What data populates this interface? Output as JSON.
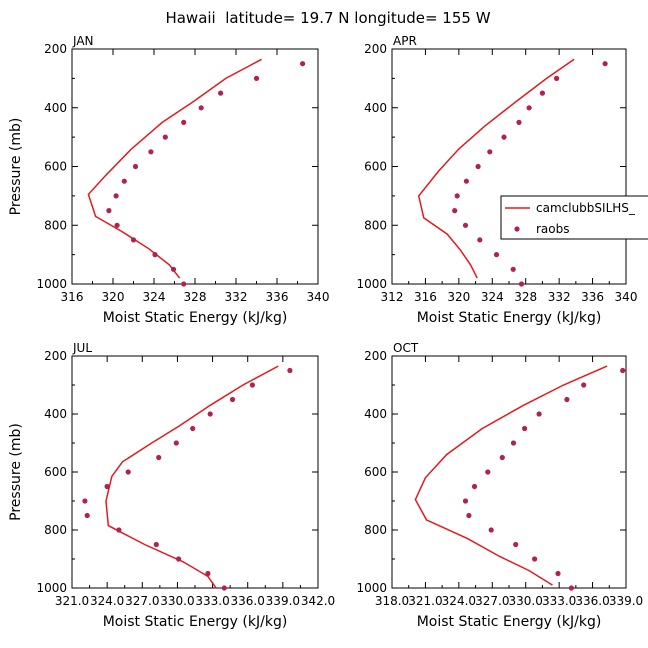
{
  "figure_title": "Hawaii  latitude= 19.7 N longitude= 155 W",
  "legend": {
    "model_label": "camclubbSILHS_",
    "obs_label": "raobs",
    "model_color": "#e41a1c",
    "obs_color": "#b2224e"
  },
  "chart_data": [
    {
      "type": "line",
      "panel": "JAN",
      "title": "JAN",
      "xlabel": "Moist Static Energy (kJ/kg)",
      "ylabel": "Pressure (mb)",
      "xlim": [
        316,
        340
      ],
      "ylim": [
        1000,
        200
      ],
      "x_tick_labels": [
        "316",
        "320",
        "324",
        "328",
        "332",
        "336",
        "340"
      ],
      "y_tick_labels": [
        "200",
        "400",
        "600",
        "800",
        "1000"
      ],
      "series": [
        {
          "name": "camclubbSILHS_",
          "style": "line",
          "points": [
            [
              334.5,
              235
            ],
            [
              331,
              300
            ],
            [
              327.8,
              380
            ],
            [
              324.8,
              450
            ],
            [
              321.8,
              540
            ],
            [
              319.3,
              630
            ],
            [
              317.6,
              695
            ],
            [
              318.3,
              770
            ],
            [
              320.8,
              820
            ],
            [
              323.5,
              880
            ],
            [
              325.5,
              935
            ],
            [
              326.5,
              980
            ]
          ]
        },
        {
          "name": "raobs",
          "style": "markers",
          "points": [
            [
              338.5,
              250
            ],
            [
              334,
              300
            ],
            [
              330.5,
              350
            ],
            [
              328.6,
              400
            ],
            [
              326.9,
              450
            ],
            [
              325.1,
              500
            ],
            [
              323.7,
              550
            ],
            [
              322.2,
              600
            ],
            [
              321.1,
              650
            ],
            [
              320.3,
              700
            ],
            [
              319.6,
              750
            ],
            [
              320.4,
              800
            ],
            [
              322,
              850
            ],
            [
              324.1,
              900
            ],
            [
              325.9,
              950
            ],
            [
              326.9,
              1000
            ]
          ]
        }
      ]
    },
    {
      "type": "line",
      "panel": "APR",
      "title": "APR",
      "xlabel": "Moist Static Energy (kJ/kg)",
      "ylabel": "",
      "xlim": [
        312,
        340
      ],
      "ylim": [
        1000,
        200
      ],
      "x_tick_labels": [
        "312",
        "316",
        "320",
        "324",
        "328",
        "332",
        "336",
        "340"
      ],
      "y_tick_labels": [
        "200",
        "400",
        "600",
        "800",
        "1000"
      ],
      "series": [
        {
          "name": "camclubbSILHS_",
          "style": "line",
          "points": [
            [
              333.8,
              235
            ],
            [
              330.5,
              300
            ],
            [
              326.8,
              380
            ],
            [
              323.2,
              460
            ],
            [
              320,
              540
            ],
            [
              317.6,
              615
            ],
            [
              315.2,
              700
            ],
            [
              315.8,
              775
            ],
            [
              318.6,
              830
            ],
            [
              320.2,
              885
            ],
            [
              321.4,
              935
            ],
            [
              322.2,
              980
            ]
          ]
        },
        {
          "name": "raobs",
          "style": "markers",
          "points": [
            [
              337.5,
              250
            ],
            [
              331.7,
              300
            ],
            [
              330,
              350
            ],
            [
              328.4,
              400
            ],
            [
              327.2,
              450
            ],
            [
              325.4,
              500
            ],
            [
              323.7,
              550
            ],
            [
              322.3,
              600
            ],
            [
              320.9,
              650
            ],
            [
              319.8,
              700
            ],
            [
              319.5,
              750
            ],
            [
              320.8,
              800
            ],
            [
              322.5,
              850
            ],
            [
              324.5,
              900
            ],
            [
              326.5,
              950
            ],
            [
              327.5,
              1000
            ]
          ]
        }
      ]
    },
    {
      "type": "line",
      "panel": "JUL",
      "title": "JUL",
      "xlabel": "Moist Static Energy (kJ/kg)",
      "ylabel": "Pressure (mb)",
      "xlim": [
        321.0,
        342.0
      ],
      "ylim": [
        1000,
        200
      ],
      "x_tick_labels": [
        "321.0",
        "324.0",
        "327.0",
        "330.0",
        "333.0",
        "336.0",
        "339.0",
        "342.0"
      ],
      "y_tick_labels": [
        "200",
        "400",
        "600",
        "800",
        "1000"
      ],
      "series": [
        {
          "name": "camclubbSILHS_",
          "style": "line",
          "points": [
            [
              338.6,
              235
            ],
            [
              335.6,
              300
            ],
            [
              332.8,
              370
            ],
            [
              330.2,
              440
            ],
            [
              327.8,
              500
            ],
            [
              325.3,
              565
            ],
            [
              324.4,
              615
            ],
            [
              323.9,
              700
            ],
            [
              324.1,
              785
            ],
            [
              327.2,
              850
            ],
            [
              330.5,
              910
            ],
            [
              332.6,
              960
            ],
            [
              333.3,
              1000
            ]
          ]
        },
        {
          "name": "raobs",
          "style": "markers",
          "points": [
            [
              339.6,
              250
            ],
            [
              336.4,
              300
            ],
            [
              334.7,
              350
            ],
            [
              332.8,
              400
            ],
            [
              331.3,
              450
            ],
            [
              329.9,
              500
            ],
            [
              328.4,
              550
            ],
            [
              325.8,
              600
            ],
            [
              324,
              650
            ],
            [
              322.1,
              700
            ],
            [
              322.3,
              750
            ],
            [
              325,
              800
            ],
            [
              328.2,
              850
            ],
            [
              330.1,
              900
            ],
            [
              332.6,
              950
            ],
            [
              334,
              1000
            ]
          ]
        }
      ]
    },
    {
      "type": "line",
      "panel": "OCT",
      "title": "OCT",
      "xlabel": "Moist Static Energy (kJ/kg)",
      "ylabel": "",
      "xlim": [
        318.0,
        339.0
      ],
      "ylim": [
        1000,
        200
      ],
      "x_tick_labels": [
        "318.0",
        "321.0",
        "324.0",
        "327.0",
        "330.0",
        "333.0",
        "336.0",
        "339.0"
      ],
      "y_tick_labels": [
        "200",
        "400",
        "600",
        "800",
        "1000"
      ],
      "series": [
        {
          "name": "camclubbSILHS_",
          "style": "line",
          "points": [
            [
              337.3,
              235
            ],
            [
              333.4,
              300
            ],
            [
              329.8,
              370
            ],
            [
              326.1,
              450
            ],
            [
              322.9,
              540
            ],
            [
              321,
              620
            ],
            [
              320.1,
              695
            ],
            [
              321.1,
              765
            ],
            [
              324.8,
              830
            ],
            [
              327.6,
              890
            ],
            [
              330.3,
              940
            ],
            [
              332.4,
              990
            ]
          ]
        },
        {
          "name": "raobs",
          "style": "markers",
          "points": [
            [
              338.7,
              250
            ],
            [
              335.2,
              300
            ],
            [
              333.7,
              350
            ],
            [
              331.2,
              400
            ],
            [
              329.9,
              450
            ],
            [
              328.9,
              500
            ],
            [
              327.9,
              550
            ],
            [
              326.6,
              600
            ],
            [
              325.4,
              650
            ],
            [
              324.6,
              700
            ],
            [
              324.9,
              750
            ],
            [
              326.9,
              800
            ],
            [
              329.1,
              850
            ],
            [
              330.8,
              900
            ],
            [
              332.9,
              950
            ],
            [
              334.1,
              1000
            ]
          ]
        }
      ]
    }
  ]
}
